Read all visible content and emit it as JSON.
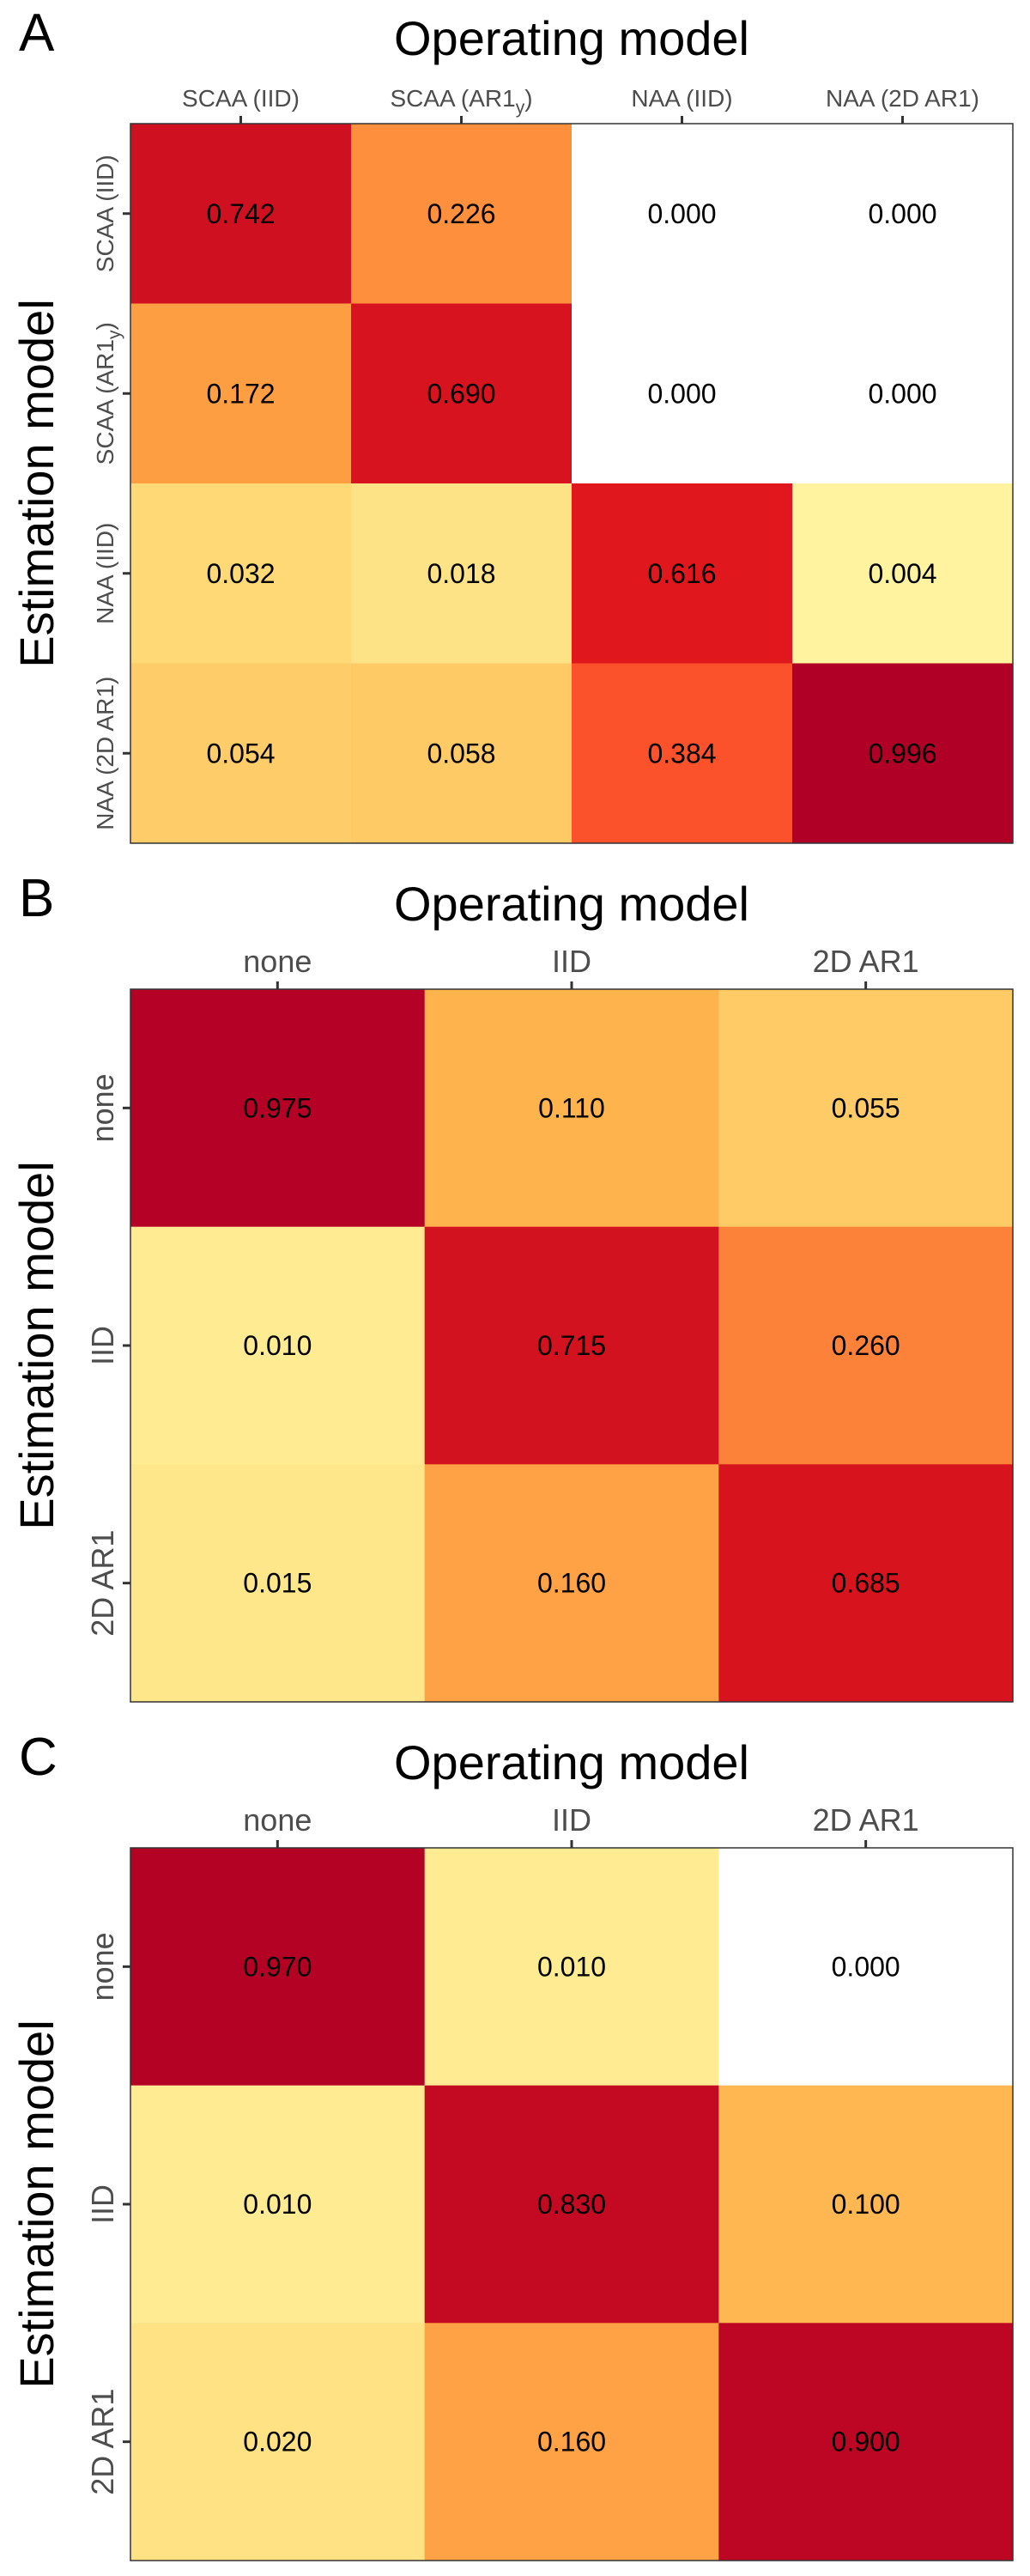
{
  "chart_data": [
    {
      "type": "heatmap",
      "panel": "A",
      "title": "Operating model",
      "ylabel": "Estimation model",
      "x_categories": [
        "SCAA  (IID)",
        "SCAA (AR1y)",
        "NAA  (IID)",
        "NAA  (2D AR1)"
      ],
      "y_categories": [
        "SCAA  (IID)",
        "SCAA (AR1y)",
        "NAA  (IID)",
        "NAA  (2D AR1)"
      ],
      "values": [
        [
          0.742,
          0.226,
          0.0,
          0.0
        ],
        [
          0.172,
          0.69,
          0.0,
          0.0
        ],
        [
          0.032,
          0.018,
          0.616,
          0.004
        ],
        [
          0.054,
          0.058,
          0.384,
          0.996
        ]
      ],
      "value_labels": [
        [
          "0.742",
          "0.226",
          "0.000",
          "0.000"
        ],
        [
          "0.172",
          "0.690",
          "0.000",
          "0.000"
        ],
        [
          "0.032",
          "0.018",
          "0.616",
          "0.004"
        ],
        [
          "0.054",
          "0.058",
          "0.384",
          "0.996"
        ]
      ]
    },
    {
      "type": "heatmap",
      "panel": "B",
      "title": "Operating model",
      "ylabel": "Estimation model",
      "x_categories": [
        "none",
        "IID",
        "2D  AR1"
      ],
      "y_categories": [
        "none",
        "IID",
        "2D  AR1"
      ],
      "values": [
        [
          0.975,
          0.11,
          0.055
        ],
        [
          0.01,
          0.715,
          0.26
        ],
        [
          0.015,
          0.16,
          0.685
        ]
      ],
      "value_labels": [
        [
          "0.975",
          "0.110",
          "0.055"
        ],
        [
          "0.010",
          "0.715",
          "0.260"
        ],
        [
          "0.015",
          "0.160",
          "0.685"
        ]
      ]
    },
    {
      "type": "heatmap",
      "panel": "C",
      "title": "Operating model",
      "ylabel": "Estimation model",
      "x_categories": [
        "none",
        "IID",
        "2D  AR1"
      ],
      "y_categories": [
        "none",
        "IID",
        "2D  AR1"
      ],
      "values": [
        [
          0.97,
          0.01,
          0.0
        ],
        [
          0.01,
          0.83,
          0.1
        ],
        [
          0.02,
          0.16,
          0.9
        ]
      ],
      "value_labels": [
        [
          "0.970",
          "0.010",
          "0.000"
        ],
        [
          "0.010",
          "0.830",
          "0.100"
        ],
        [
          "0.020",
          "0.160",
          "0.900"
        ]
      ]
    }
  ],
  "colors": {
    "zero": "#ffffff",
    "low": "#ffffb2",
    "mid": "#fd8d3c",
    "high": "#b10026"
  }
}
